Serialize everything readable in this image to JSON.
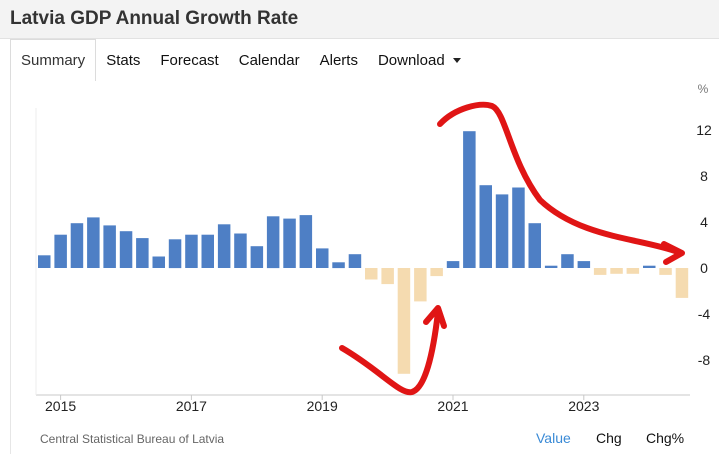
{
  "title": "Latvia GDP Annual Growth Rate",
  "tabs": [
    {
      "label": "Summary"
    },
    {
      "label": "Stats"
    },
    {
      "label": "Forecast"
    },
    {
      "label": "Calendar"
    },
    {
      "label": "Alerts"
    },
    {
      "label": "Download"
    }
  ],
  "footer": {
    "source": "Central Statistical Bureau of Latvia",
    "links": {
      "value": "Value",
      "chg": "Chg",
      "chg_pct": "Chg%"
    }
  },
  "colors": {
    "positive": "#4e7fc5",
    "negative": "#f5dbb0",
    "annotation": "#e01515"
  },
  "chart_data": {
    "type": "bar",
    "ylabel": "%",
    "ylim": [
      -9.5,
      13.5
    ],
    "yticks": [
      12,
      8,
      4,
      0,
      -4,
      -8
    ],
    "xtick_labels": [
      "2015",
      "2017",
      "2019",
      "2021",
      "2023"
    ],
    "grid": false,
    "legend": "none",
    "categories": [
      "2014Q4",
      "2015Q1",
      "2015Q2",
      "2015Q3",
      "2015Q4",
      "2016Q1",
      "2016Q2",
      "2016Q3",
      "2016Q4",
      "2017Q1",
      "2017Q2",
      "2017Q3",
      "2017Q4",
      "2018Q1",
      "2018Q2",
      "2018Q3",
      "2018Q4",
      "2019Q1",
      "2019Q2",
      "2019Q3",
      "2019Q4",
      "2020Q1",
      "2020Q2",
      "2020Q3",
      "2020Q4",
      "2021Q1",
      "2021Q2",
      "2021Q3",
      "2021Q4",
      "2022Q1",
      "2022Q2",
      "2022Q3",
      "2022Q4",
      "2023Q1",
      "2023Q2",
      "2023Q3",
      "2023Q4",
      "2024Q1",
      "2024Q2",
      "2024Q3"
    ],
    "values": [
      1.1,
      2.9,
      3.9,
      4.4,
      3.7,
      3.2,
      2.6,
      1.0,
      2.5,
      2.9,
      2.9,
      3.8,
      3.0,
      1.9,
      4.5,
      4.3,
      4.6,
      1.7,
      0.5,
      1.2,
      -1.0,
      -1.4,
      -9.2,
      -2.9,
      -0.7,
      0.6,
      11.9,
      7.2,
      6.4,
      7.0,
      3.9,
      0.2,
      1.2,
      0.6,
      -0.6,
      -0.5,
      -0.5,
      0.2,
      -0.6,
      -2.6
    ]
  }
}
